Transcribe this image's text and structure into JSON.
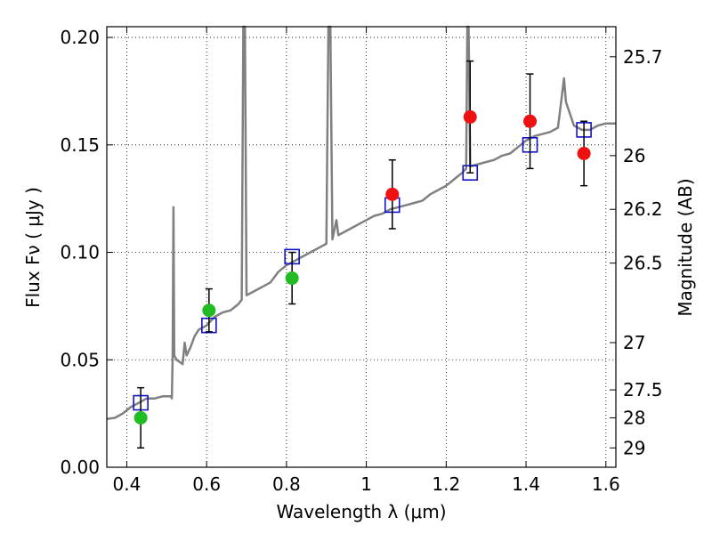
{
  "chart_data": {
    "type": "scatter",
    "xlabel": "Wavelength  λ (μm)",
    "ylabel": "Flux  Fν  ( μJy )",
    "ylabel_right": "Magnitude (AB)",
    "xlim": [
      0.35,
      1.625
    ],
    "ylim": [
      0.0,
      0.205
    ],
    "x_ticks": [
      0.4,
      0.6,
      0.8,
      1.0,
      1.2,
      1.4,
      1.6
    ],
    "x_tick_labels": [
      "0.4",
      "0.6",
      "0.8",
      "1",
      "1.2",
      "1.4",
      "1.6"
    ],
    "y_ticks": [
      0.0,
      0.05,
      0.1,
      0.15,
      0.2
    ],
    "y_tick_labels": [
      "0.00",
      "0.05",
      "0.10",
      "0.15",
      "0.20"
    ],
    "right_ticks": [
      {
        "flux": 0.191,
        "label": "25.7"
      },
      {
        "flux": 0.145,
        "label": "26"
      },
      {
        "flux": 0.12,
        "label": "26.2"
      },
      {
        "flux": 0.095,
        "label": "26.5"
      },
      {
        "flux": 0.058,
        "label": "27"
      },
      {
        "flux": 0.036,
        "label": "27.5"
      },
      {
        "flux": 0.023,
        "label": "28"
      },
      {
        "flux": 0.009,
        "label": "29"
      }
    ],
    "grid": true,
    "series": [
      {
        "kind": "observed",
        "color": "#22bb22",
        "points": [
          {
            "x": 0.435,
            "y": 0.023,
            "err": 0.014
          },
          {
            "x": 0.606,
            "y": 0.073,
            "err": 0.01
          },
          {
            "x": 0.814,
            "y": 0.088,
            "err": 0.012
          }
        ]
      },
      {
        "kind": "observed",
        "color": "#ee1111",
        "points": [
          {
            "x": 1.065,
            "y": 0.127,
            "err": 0.016
          },
          {
            "x": 1.26,
            "y": 0.163,
            "err": 0.026
          },
          {
            "x": 1.41,
            "y": 0.161,
            "err": 0.022
          },
          {
            "x": 1.545,
            "y": 0.146,
            "err": 0.015
          }
        ]
      },
      {
        "kind": "model",
        "color": "#1111cc",
        "points": [
          {
            "x": 0.435,
            "y": 0.03
          },
          {
            "x": 0.606,
            "y": 0.066
          },
          {
            "x": 0.814,
            "y": 0.098
          },
          {
            "x": 1.065,
            "y": 0.122
          },
          {
            "x": 1.26,
            "y": 0.137
          },
          {
            "x": 1.41,
            "y": 0.15
          },
          {
            "x": 1.545,
            "y": 0.157
          }
        ]
      }
    ],
    "spectrum": {
      "color": "#808080",
      "points": [
        [
          0.35,
          0.0225
        ],
        [
          0.37,
          0.023
        ],
        [
          0.39,
          0.025
        ],
        [
          0.41,
          0.028
        ],
        [
          0.43,
          0.03
        ],
        [
          0.45,
          0.032
        ],
        [
          0.47,
          0.032
        ],
        [
          0.49,
          0.033
        ],
        [
          0.51,
          0.033
        ],
        [
          0.513,
          0.032
        ],
        [
          0.515,
          0.052
        ],
        [
          0.517,
          0.121
        ],
        [
          0.519,
          0.052
        ],
        [
          0.525,
          0.05
        ],
        [
          0.54,
          0.048
        ],
        [
          0.545,
          0.058
        ],
        [
          0.55,
          0.052
        ],
        [
          0.56,
          0.056
        ],
        [
          0.57,
          0.061
        ],
        [
          0.58,
          0.064
        ],
        [
          0.6,
          0.066
        ],
        [
          0.62,
          0.07
        ],
        [
          0.64,
          0.072
        ],
        [
          0.66,
          0.073
        ],
        [
          0.68,
          0.076
        ],
        [
          0.688,
          0.078
        ],
        [
          0.692,
          0.205
        ],
        [
          0.696,
          0.205
        ],
        [
          0.7,
          0.08
        ],
        [
          0.72,
          0.082
        ],
        [
          0.74,
          0.084
        ],
        [
          0.76,
          0.086
        ],
        [
          0.78,
          0.091
        ],
        [
          0.8,
          0.094
        ],
        [
          0.82,
          0.096
        ],
        [
          0.84,
          0.098
        ],
        [
          0.86,
          0.1
        ],
        [
          0.88,
          0.102
        ],
        [
          0.9,
          0.104
        ],
        [
          0.905,
          0.205
        ],
        [
          0.91,
          0.205
        ],
        [
          0.915,
          0.106
        ],
        [
          0.925,
          0.115
        ],
        [
          0.93,
          0.108
        ],
        [
          0.95,
          0.11
        ],
        [
          0.97,
          0.112
        ],
        [
          0.99,
          0.114
        ],
        [
          1.0,
          0.115
        ],
        [
          1.02,
          0.117
        ],
        [
          1.04,
          0.118
        ],
        [
          1.06,
          0.12
        ],
        [
          1.08,
          0.121
        ],
        [
          1.1,
          0.122
        ],
        [
          1.12,
          0.123
        ],
        [
          1.14,
          0.124
        ],
        [
          1.16,
          0.127
        ],
        [
          1.18,
          0.129
        ],
        [
          1.2,
          0.131
        ],
        [
          1.22,
          0.134
        ],
        [
          1.24,
          0.137
        ],
        [
          1.25,
          0.139
        ],
        [
          1.253,
          0.205
        ],
        [
          1.256,
          0.205
        ],
        [
          1.26,
          0.14
        ],
        [
          1.28,
          0.141
        ],
        [
          1.3,
          0.142
        ],
        [
          1.32,
          0.143
        ],
        [
          1.34,
          0.145
        ],
        [
          1.36,
          0.146
        ],
        [
          1.38,
          0.149
        ],
        [
          1.4,
          0.152
        ],
        [
          1.42,
          0.154
        ],
        [
          1.44,
          0.155
        ],
        [
          1.46,
          0.156
        ],
        [
          1.48,
          0.158
        ],
        [
          1.49,
          0.173
        ],
        [
          1.495,
          0.181
        ],
        [
          1.5,
          0.17
        ],
        [
          1.52,
          0.159
        ],
        [
          1.54,
          0.157
        ],
        [
          1.56,
          0.157
        ],
        [
          1.58,
          0.159
        ],
        [
          1.6,
          0.16
        ],
        [
          1.625,
          0.16
        ]
      ]
    }
  }
}
